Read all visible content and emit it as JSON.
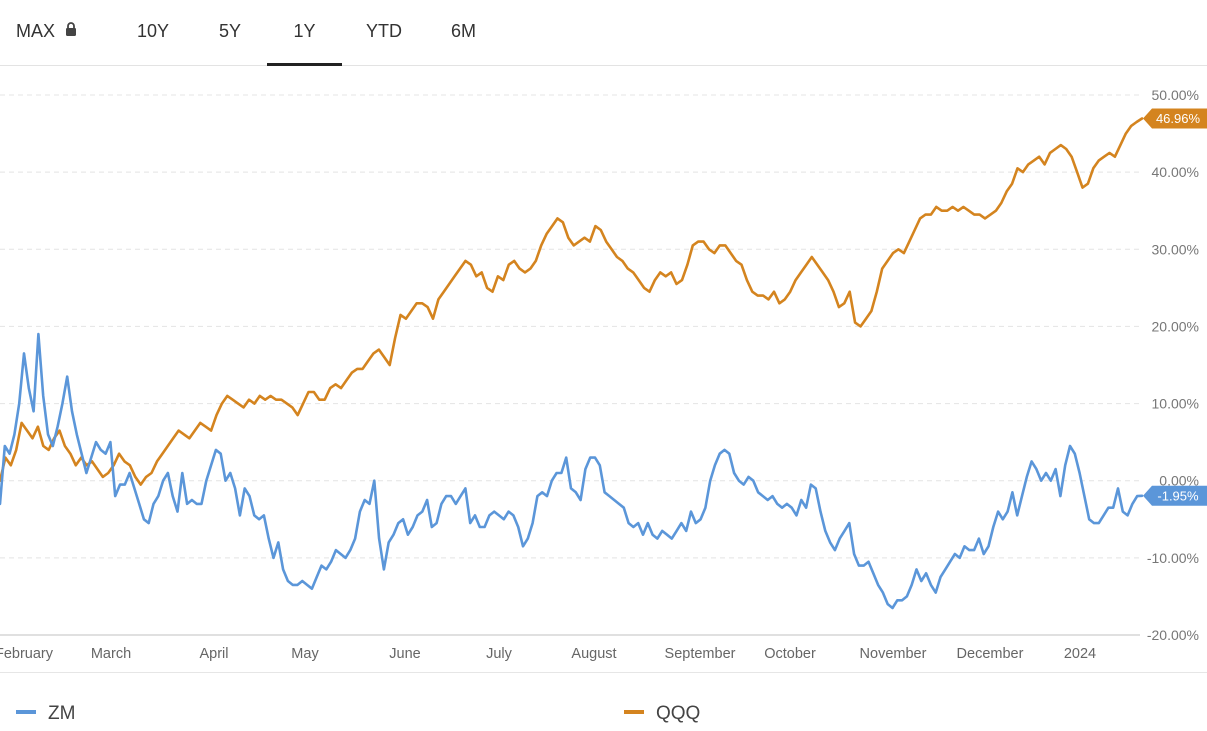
{
  "tabs": [
    {
      "label": "MAX",
      "locked": true,
      "active": false
    },
    {
      "label": "10Y",
      "active": false
    },
    {
      "label": "5Y",
      "active": false
    },
    {
      "label": "1Y",
      "active": true
    },
    {
      "label": "YTD",
      "active": false
    },
    {
      "label": "6M",
      "active": false
    }
  ],
  "legend": [
    {
      "name": "ZM",
      "color": "#5b96d9"
    },
    {
      "name": "QQQ",
      "color": "#d4841f"
    }
  ],
  "chart_data": {
    "type": "line",
    "y_ticks": [
      "50.00%",
      "40.00%",
      "30.00%",
      "20.00%",
      "10.00%",
      "0.00%",
      "-10.00%",
      "-20.00%"
    ],
    "ylim": [
      -20,
      50
    ],
    "x_ticks": [
      "February",
      "March",
      "April",
      "May",
      "June",
      "July",
      "August",
      "September",
      "October",
      "November",
      "December",
      "2024"
    ],
    "grid": true,
    "series": [
      {
        "name": "ZM",
        "color": "#5b96d9",
        "last_value_label": "-1.95%",
        "values": [
          -3.0,
          4.5,
          3.5,
          6.0,
          10.0,
          16.5,
          12.0,
          9.0,
          19.0,
          11.0,
          6.0,
          4.5,
          7.0,
          10.0,
          13.5,
          9.0,
          6.0,
          3.5,
          1.0,
          3.0,
          5.0,
          4.0,
          3.5,
          5.0,
          -2.0,
          -0.5,
          -0.5,
          1.0,
          -1.0,
          -3.0,
          -5.0,
          -5.5,
          -3.0,
          -2.0,
          0.0,
          1.0,
          -2.0,
          -4.0,
          1.0,
          -3.0,
          -2.5,
          -3.0,
          -3.0,
          0.0,
          2.0,
          4.0,
          3.5,
          0.0,
          1.0,
          -1.0,
          -4.5,
          -1.0,
          -2.0,
          -4.5,
          -5.0,
          -4.5,
          -7.5,
          -10.0,
          -8.0,
          -11.5,
          -13.0,
          -13.5,
          -13.5,
          -13.0,
          -13.5,
          -14.0,
          -12.5,
          -11.0,
          -11.5,
          -10.5,
          -9.0,
          -9.5,
          -10.0,
          -9.0,
          -7.5,
          -4.0,
          -2.5,
          -3.0,
          0.0,
          -7.5,
          -11.5,
          -8.0,
          -7.0,
          -5.5,
          -5.0,
          -7.0,
          -6.0,
          -4.5,
          -4.0,
          -2.5,
          -6.0,
          -5.5,
          -3.0,
          -2.0,
          -2.0,
          -3.0,
          -2.0,
          -1.0,
          -5.5,
          -4.5,
          -6.0,
          -6.0,
          -4.5,
          -4.0,
          -4.5,
          -5.0,
          -4.0,
          -4.5,
          -6.0,
          -8.5,
          -7.5,
          -5.5,
          -2.0,
          -1.5,
          -2.0,
          0.0,
          1.0,
          1.0,
          3.0,
          -1.0,
          -1.5,
          -2.5,
          1.5,
          3.0,
          3.0,
          2.0,
          -1.5,
          -2.0,
          -2.5,
          -3.0,
          -3.5,
          -5.5,
          -6.0,
          -5.5,
          -7.0,
          -5.5,
          -7.0,
          -7.5,
          -6.5,
          -7.0,
          -7.5,
          -6.5,
          -5.5,
          -6.5,
          -4.0,
          -5.5,
          -5.0,
          -3.5,
          0.0,
          2.0,
          3.5,
          4.0,
          3.5,
          1.0,
          0.0,
          -0.5,
          0.5,
          0.0,
          -1.5,
          -2.0,
          -2.5,
          -2.0,
          -3.0,
          -3.5,
          -3.0,
          -3.5,
          -4.5,
          -2.5,
          -3.5,
          -0.5,
          -1.0,
          -4.0,
          -6.5,
          -8.0,
          -9.0,
          -7.5,
          -6.5,
          -5.5,
          -9.5,
          -11.0,
          -11.0,
          -10.5,
          -12.0,
          -13.5,
          -14.5,
          -16.0,
          -16.5,
          -15.5,
          -15.5,
          -15.0,
          -13.5,
          -11.5,
          -13.0,
          -12.0,
          -13.5,
          -14.5,
          -12.5,
          -11.5,
          -10.5,
          -9.5,
          -10.0,
          -8.5,
          -9.0,
          -9.0,
          -7.5,
          -9.5,
          -8.5,
          -6.0,
          -4.0,
          -5.0,
          -4.0,
          -1.5,
          -4.5,
          -2.0,
          0.5,
          2.5,
          1.5,
          0.0,
          1.0,
          0.0,
          1.5,
          -2.0,
          2.0,
          4.5,
          3.5,
          1.0,
          -2.0,
          -5.0,
          -5.5,
          -5.5,
          -4.5,
          -3.5,
          -3.5,
          -1.0,
          -4.0,
          -4.5,
          -3.0,
          -2.0,
          -1.95
        ]
      },
      {
        "name": "QQQ",
        "color": "#d4841f",
        "last_value_label": "46.96%",
        "values": [
          0.0,
          3.0,
          2.0,
          4.0,
          7.5,
          6.5,
          5.5,
          7.0,
          4.5,
          4.0,
          5.5,
          6.5,
          4.5,
          3.5,
          2.0,
          3.0,
          2.0,
          2.5,
          1.5,
          0.5,
          1.0,
          2.0,
          3.5,
          2.5,
          2.0,
          0.5,
          -0.5,
          0.5,
          1.0,
          2.5,
          3.5,
          4.5,
          5.5,
          6.5,
          6.0,
          5.5,
          6.5,
          7.5,
          7.0,
          6.5,
          8.5,
          10.0,
          11.0,
          10.5,
          10.0,
          9.5,
          10.5,
          10.0,
          11.0,
          10.5,
          11.0,
          10.5,
          10.5,
          10.0,
          9.5,
          8.5,
          10.0,
          11.5,
          11.5,
          10.5,
          10.5,
          12.0,
          12.5,
          12.0,
          13.0,
          14.0,
          14.5,
          14.5,
          15.5,
          16.5,
          17.0,
          16.0,
          15.0,
          18.5,
          21.5,
          21.0,
          22.0,
          23.0,
          23.0,
          22.5,
          21.0,
          23.5,
          24.5,
          25.5,
          26.5,
          27.5,
          28.5,
          28.0,
          26.5,
          27.0,
          25.0,
          24.5,
          26.5,
          26.0,
          28.0,
          28.5,
          27.5,
          27.0,
          27.5,
          28.5,
          30.5,
          32.0,
          33.0,
          34.0,
          33.5,
          31.5,
          30.5,
          31.0,
          31.5,
          31.0,
          33.0,
          32.5,
          31.0,
          30.0,
          29.0,
          28.5,
          27.5,
          27.0,
          26.0,
          25.0,
          24.5,
          26.0,
          27.0,
          26.5,
          27.0,
          25.5,
          26.0,
          28.0,
          30.5,
          31.0,
          31.0,
          30.0,
          29.5,
          30.5,
          30.5,
          29.5,
          28.5,
          28.0,
          26.0,
          24.5,
          24.0,
          24.0,
          23.5,
          24.5,
          23.0,
          23.5,
          24.5,
          26.0,
          27.0,
          28.0,
          29.0,
          28.0,
          27.0,
          26.0,
          24.5,
          22.5,
          23.0,
          24.5,
          20.5,
          20.0,
          21.0,
          22.0,
          24.5,
          27.5,
          28.5,
          29.5,
          30.0,
          29.5,
          31.0,
          32.5,
          34.0,
          34.5,
          34.5,
          35.5,
          35.0,
          35.0,
          35.5,
          35.0,
          35.5,
          35.0,
          34.5,
          34.5,
          34.0,
          34.5,
          35.0,
          36.0,
          37.5,
          38.5,
          40.5,
          40.0,
          41.0,
          41.5,
          42.0,
          41.0,
          42.5,
          43.0,
          43.5,
          43.0,
          42.0,
          40.0,
          38.0,
          38.5,
          40.5,
          41.5,
          42.0,
          42.5,
          42.0,
          43.5,
          45.0,
          46.0,
          46.5,
          46.96
        ]
      }
    ]
  }
}
